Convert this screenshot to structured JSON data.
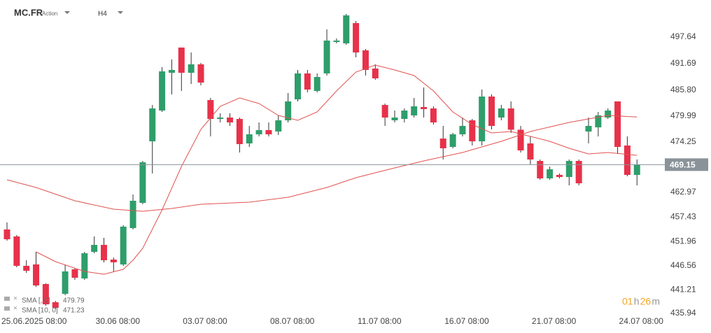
{
  "header": {
    "symbol": "MC.FR",
    "kind": "Action",
    "timeframe": "H4"
  },
  "chart_data": {
    "type": "candlestick",
    "categories": [
      null,
      null,
      "25.06.2025 08:00",
      null,
      null,
      null,
      null,
      null,
      null,
      null,
      null,
      "30.06 08:00",
      null,
      null,
      null,
      null,
      null,
      null,
      null,
      null,
      "03.07 08:00",
      null,
      null,
      null,
      null,
      null,
      null,
      null,
      null,
      "08.07 08:00",
      null,
      null,
      null,
      null,
      null,
      null,
      null,
      null,
      "11.07 08:00",
      null,
      null,
      null,
      null,
      null,
      null,
      null,
      null,
      "16.07 08:00",
      null,
      null,
      null,
      null,
      null,
      null,
      null,
      null,
      "21.07 08:00",
      null,
      null,
      null,
      null,
      null,
      null,
      null,
      null,
      "24.07 08:00"
    ],
    "open": [
      454.67,
      453.11,
      446.55,
      446.86,
      442.48,
      438.42,
      440.3,
      445.77,
      443.73,
      449.67,
      451.23,
      447.95,
      446.86,
      454.98,
      460.61,
      474.36,
      481.23,
      489.67,
      495.3,
      489.67,
      491.55,
      483.58,
      479.36,
      479.67,
      479.36,
      473.89,
      475.92,
      476.86,
      476.55,
      479.05,
      483.73,
      489.52,
      485.61,
      489.52,
      496.55,
      496.23,
      500.77,
      494.67,
      490.61,
      482.48,
      479.05,
      479.36,
      480.14,
      482.02,
      481.7,
      474.98,
      473.11,
      475.92,
      479.05,
      474.36,
      484.36,
      479.67,
      481.7,
      476.95,
      473.89,
      469.98,
      466.08,
      466.86,
      466.39,
      469.98,
      476.55,
      477.48,
      479.67,
      483.27,
      473.42,
      466.86
    ],
    "high": [
      456.23,
      453.42,
      447.8,
      449.67,
      442.64,
      438.73,
      446.86,
      446.08,
      449.67,
      453.11,
      452.8,
      448.42,
      455.61,
      462.48,
      469.98,
      482.48,
      490.92,
      492.64,
      495.3,
      494.2,
      491.86,
      484.05,
      480.61,
      480.61,
      479.67,
      477.8,
      478.58,
      478.58,
      480.14,
      485.14,
      490.3,
      490.3,
      489.52,
      499.36,
      497.33,
      502.8,
      501.23,
      494.98,
      491.55,
      482.8,
      481.23,
      481.7,
      484.05,
      486.39,
      482.17,
      477.8,
      476.23,
      479.67,
      479.36,
      485.92,
      484.83,
      482.48,
      483.27,
      477.8,
      475.45,
      470.3,
      468.73,
      467.17,
      470.3,
      470.3,
      479.67,
      480.92,
      481.7,
      483.27,
      475.45,
      470.3
    ],
    "low": [
      452.17,
      446.23,
      444.98,
      441.86,
      437.64,
      436.86,
      439.98,
      443.42,
      443.42,
      449.36,
      447.33,
      445.3,
      446.55,
      454.67,
      460.3,
      467.17,
      480.92,
      484.83,
      485.61,
      487.17,
      486.86,
      475.45,
      478.58,
      477.8,
      471.86,
      473.11,
      475.45,
      475.45,
      475.77,
      478.58,
      483.27,
      485.3,
      485.3,
      489.05,
      496.23,
      495.92,
      493.11,
      489.05,
      488.11,
      477.8,
      478.58,
      478.58,
      479.67,
      479.67,
      478.11,
      470.3,
      472.8,
      475.45,
      473.42,
      473.42,
      477.02,
      479.05,
      476.23,
      471.86,
      469.2,
      465.77,
      465.77,
      466.08,
      464.52,
      464.52,
      473.89,
      475.45,
      479.36,
      471.55,
      466.55,
      464.52
    ],
    "close": [
      452.48,
      446.55,
      445.45,
      442.17,
      437.95,
      437.17,
      445.3,
      443.89,
      449.36,
      451.23,
      447.8,
      447.33,
      455.3,
      461.08,
      469.67,
      481.7,
      489.98,
      490.3,
      489.67,
      491.55,
      487.48,
      479.36,
      479.67,
      478.58,
      473.73,
      475.92,
      476.86,
      475.92,
      479.05,
      483.27,
      489.52,
      485.92,
      488.73,
      496.86,
      496.86,
      502.48,
      494.2,
      490.3,
      488.42,
      479.67,
      479.67,
      481.23,
      482.17,
      481.55,
      478.58,
      472.8,
      475.92,
      477.8,
      474.36,
      484.36,
      477.8,
      481.7,
      476.95,
      472.33,
      470.3,
      466.08,
      468.11,
      466.39,
      469.98,
      464.98,
      477.8,
      480.14,
      481.23,
      473.11,
      466.86,
      469.15
    ],
    "up_color": "#2e9e6b",
    "down_color": "#e8314a",
    "overlays": [
      {
        "name": "SMA [, 0]",
        "color": "#e0524f",
        "last_label": "479.79",
        "x": [
          0,
          3,
          7,
          11,
          14,
          17,
          20,
          25,
          29,
          33,
          36,
          40,
          43,
          47,
          51,
          54,
          58,
          62,
          65
        ],
        "values": [
          465.77,
          464.05,
          461.08,
          459.2,
          458.73,
          459.36,
          460.3,
          460.77,
          461.86,
          464.05,
          466.23,
          468.42,
          469.98,
          471.86,
          474.36,
          476.55,
          478.58,
          480.14,
          479.79
        ]
      },
      {
        "name": "SMA [10, 0]",
        "color": "#e0524f",
        "last_label": "471.23",
        "x": [
          3,
          5,
          8,
          10,
          12,
          13,
          14,
          16,
          18,
          20,
          22,
          24,
          26,
          28,
          30,
          32,
          34,
          36,
          38,
          40,
          42,
          44,
          46,
          48,
          50,
          52,
          54,
          56,
          58,
          60,
          62,
          65
        ],
        "values": [
          449.67,
          447.48,
          445.3,
          444.67,
          445.77,
          447.8,
          450.45,
          459.05,
          468.73,
          477.02,
          482.17,
          484.05,
          482.8,
          480.14,
          479.05,
          480.92,
          485.61,
          489.83,
          491.39,
          490.3,
          489.05,
          485.61,
          480.92,
          478.11,
          476.23,
          476.55,
          475.45,
          474.36,
          472.8,
          471.55,
          471.86,
          471.23
        ]
      }
    ],
    "current_price": 469.15,
    "ylim": [
      434.83,
      505.92
    ],
    "yticks": [
      497.64,
      491.69,
      {
        "value": 485.8,
        "label": "485.80"
      },
      479.99,
      474.25,
      462.97,
      457.43,
      451.96,
      446.56,
      441.21,
      435.94
    ],
    "countdown": [
      "01",
      "h",
      "26",
      "m"
    ]
  }
}
